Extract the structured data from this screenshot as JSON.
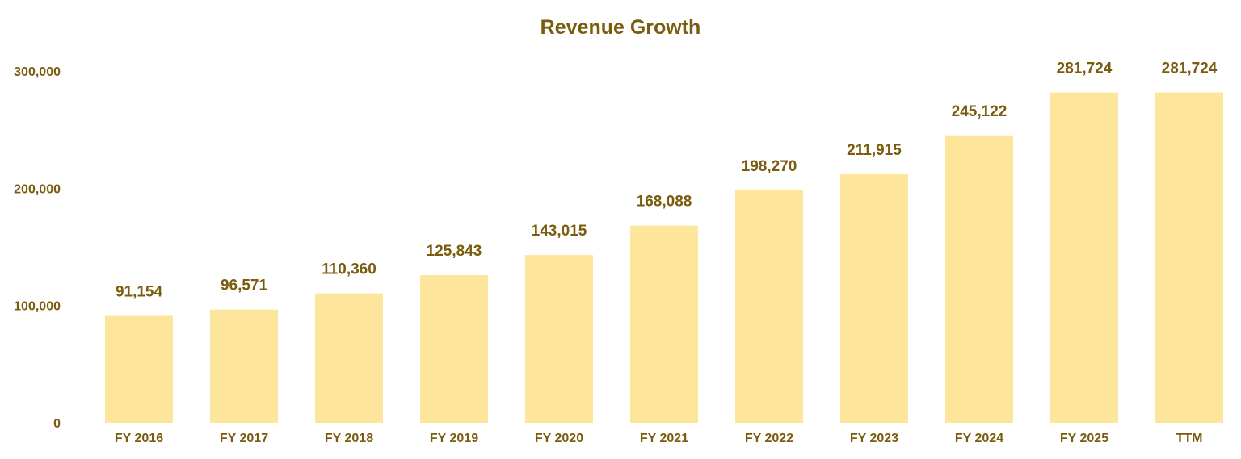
{
  "colors": {
    "bar": "#fee59c",
    "text": "#7a5c0f"
  },
  "chart_data": {
    "type": "bar",
    "title": "Revenue Growth",
    "xlabel": "",
    "ylabel": "",
    "ylim": [
      0,
      300000
    ],
    "grid": false,
    "legend": "none",
    "y_ticks": [
      {
        "value": 0,
        "label": "0"
      },
      {
        "value": 100000,
        "label": "100,000"
      },
      {
        "value": 200000,
        "label": "200,000"
      },
      {
        "value": 300000,
        "label": "300,000"
      }
    ],
    "categories": [
      "FY 2016",
      "FY 2017",
      "FY 2018",
      "FY 2019",
      "FY 2020",
      "FY 2021",
      "FY 2022",
      "FY 2023",
      "FY 2024",
      "FY 2025",
      "TTM"
    ],
    "values": [
      91154,
      96571,
      110360,
      125843,
      143015,
      168088,
      198270,
      211915,
      245122,
      281724,
      281724
    ],
    "value_labels": [
      "91,154",
      "96,571",
      "110,360",
      "125,843",
      "143,015",
      "168,088",
      "198,270",
      "211,915",
      "245,122",
      "281,724",
      "281,724"
    ]
  }
}
